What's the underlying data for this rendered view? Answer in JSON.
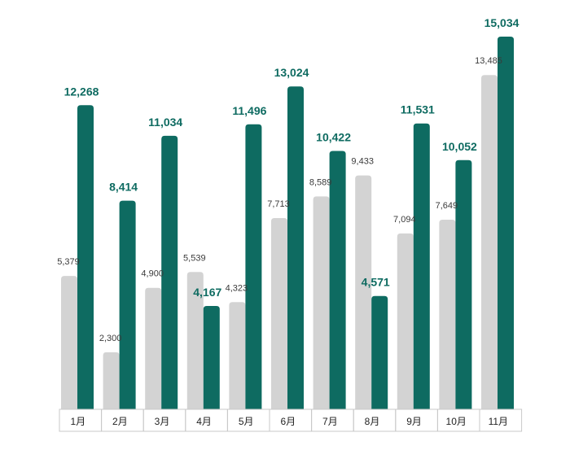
{
  "chart_data": {
    "type": "bar",
    "categories": [
      "1月",
      "2月",
      "3月",
      "4月",
      "5月",
      "6月",
      "7月",
      "8月",
      "9月",
      "10月",
      "11月"
    ],
    "series": [
      {
        "values": [
          5379,
          2300,
          4900,
          5539,
          4323,
          7713,
          8589,
          9433,
          7094,
          7649,
          13485
        ],
        "labels": [
          "5,379",
          "2,300",
          "4,900",
          "5,539",
          "4,323",
          "7,713",
          "8,589",
          "9,433",
          "7,094",
          "7,649",
          "13,485"
        ]
      },
      {
        "values": [
          12268,
          8414,
          11034,
          4167,
          11496,
          13024,
          10422,
          4571,
          11531,
          10052,
          15034
        ],
        "labels": [
          "12,268",
          "8,414",
          "11,034",
          "4,167",
          "11,496",
          "13,024",
          "10,422",
          "4,571",
          "11,531",
          "10,052",
          "15,034"
        ]
      }
    ],
    "colors": {
      "series_1": "#d3d3d3",
      "series_2": "#0e6b61",
      "series_2_label": "#0e6b61",
      "axis_box": "#c8c8c8"
    },
    "ylim": [
      0,
      15500
    ],
    "title": "",
    "xlabel": "",
    "ylabel": "",
    "legend": false,
    "grid": false
  }
}
